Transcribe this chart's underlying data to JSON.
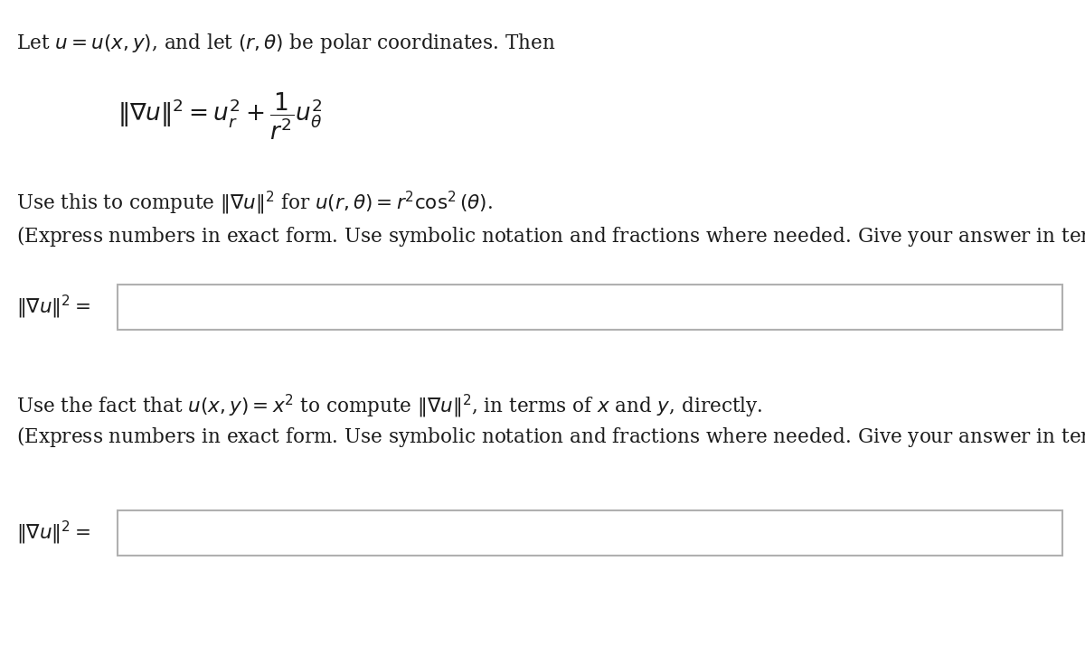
{
  "bg_color": "#ffffff",
  "text_color": "#1a1a1a",
  "box_edge_color": "#b0b0b0",
  "line1": "Let $u = u(x, y)$, and let $(r, \\theta)$ be polar coordinates. Then",
  "formula_main": "$\\|\\nabla u\\|^2 = u_r^2 + \\dfrac{1}{r^2}u_\\theta^2$",
  "line2": "Use this to compute $\\|\\nabla u\\|^2$ for $u(r, \\theta) = r^2 \\cos^2 (\\theta)$.",
  "line3": "(Express numbers in exact form. Use symbolic notation and fractions where needed. Give your answer in terms of $r$ and $\\theta$.)",
  "label1": "$\\|\\nabla u\\|^2 =$",
  "line4": "Use the fact that $u(x, y) = x^2$ to compute $\\|\\nabla u\\|^2$, in terms of $x$ and $y$, directly.",
  "line5": "(Express numbers in exact form. Use symbolic notation and fractions where needed. Give your answer in terms of $r$ and $\\theta$.)",
  "label2": "$\\|\\nabla u\\|^2 =$",
  "figwidth": 12.0,
  "figheight": 7.14,
  "dpi": 100
}
